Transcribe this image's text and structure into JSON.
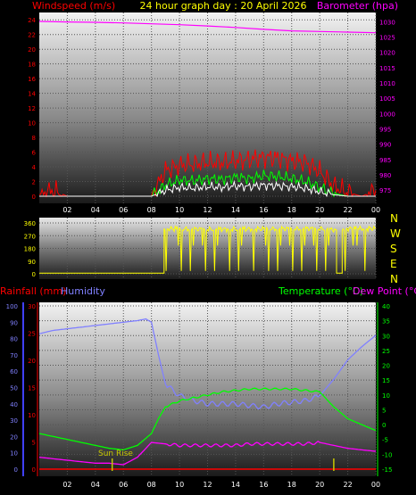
{
  "header": {
    "left_title": "Windspeed (m/s)",
    "center_title": "24 hour graph day : 20 April 2026",
    "right_title": "Barometer (hpa)"
  },
  "colors": {
    "wind_avg": "#ffffff",
    "wind_gust": "#ff0000",
    "wind_mid": "#00ff00",
    "barometer": "#ff00ff",
    "direction": "#ffff00",
    "rainfall": "#ff0000",
    "humidity": "#8080ff",
    "temperature": "#00ff00",
    "dewpoint": "#ff00ff",
    "sunrise": "#c8c800"
  },
  "chart_data": [
    {
      "type": "line",
      "name": "wind-barometer",
      "x_ticks": [
        "02",
        "04",
        "06",
        "08",
        "10",
        "12",
        "14",
        "16",
        "18",
        "20",
        "22",
        "00"
      ],
      "y_left_ticks": [
        "24",
        "22",
        "20",
        "18",
        "16",
        "14",
        "12",
        "10",
        "8",
        "6",
        "4",
        "2",
        "0"
      ],
      "y_left_range": [
        0,
        25
      ],
      "y_right_ticks": [
        "1030",
        "1025",
        "1020",
        "1015",
        "1010",
        "1005",
        "1000",
        "995",
        "990",
        "985",
        "980",
        "975"
      ],
      "y_right_range": [
        973,
        1033
      ],
      "barometer": {
        "x": [
          0,
          2,
          4,
          6,
          8,
          10,
          12,
          14,
          16,
          18,
          20,
          22,
          24
        ],
        "y": [
          1030.1,
          1029.9,
          1029.8,
          1029.6,
          1029.3,
          1029.0,
          1028.6,
          1028.1,
          1027.5,
          1027.0,
          1026.8,
          1026.6,
          1026.4
        ]
      },
      "wind_gust": {
        "x": [
          0,
          1,
          2,
          4,
          6,
          8,
          9,
          10,
          11,
          12,
          13,
          14,
          15,
          16,
          17,
          18,
          19,
          20,
          21,
          22,
          23,
          24
        ],
        "y": [
          0.2,
          0.8,
          0,
          0,
          0,
          0,
          3.5,
          4.2,
          4.4,
          4.6,
          4.6,
          4.8,
          5.0,
          5.3,
          5.2,
          4.8,
          4.6,
          3.4,
          1.4,
          0.5,
          0,
          0.8
        ]
      },
      "wind_mid": {
        "x": [
          0,
          8,
          9,
          10,
          11,
          12,
          13,
          14,
          15,
          16,
          17,
          18,
          19,
          20,
          21,
          22,
          24
        ],
        "y": [
          0,
          0,
          1.5,
          2.2,
          2.1,
          2.4,
          2.3,
          2.6,
          2.4,
          2.8,
          2.7,
          2.4,
          2.0,
          1.2,
          0.4,
          0,
          0
        ]
      },
      "wind_avg": {
        "x": [
          0,
          8,
          9,
          10,
          11,
          12,
          13,
          14,
          15,
          16,
          17,
          18,
          19,
          20,
          21,
          22,
          24
        ],
        "y": [
          0,
          0,
          0.8,
          1.2,
          1.1,
          1.3,
          1.2,
          1.4,
          1.3,
          1.5,
          1.4,
          1.3,
          1.1,
          0.6,
          0.2,
          0,
          0
        ]
      }
    },
    {
      "type": "line",
      "name": "wind-direction",
      "y_ticks": [
        "360",
        "270",
        "180",
        "90",
        "0"
      ],
      "y_range": [
        0,
        360
      ],
      "compass_labels": [
        "N",
        "W",
        "S",
        "E",
        "N"
      ],
      "direction": {
        "x": [
          0,
          8.9,
          8.9,
          12,
          16,
          20,
          21.2,
          21.2,
          21.6,
          21.6,
          24
        ],
        "y": [
          5,
          5,
          320,
          315,
          318,
          320,
          310,
          5,
          5,
          320,
          320
        ]
      }
    },
    {
      "type": "line",
      "name": "rain-humidity-temperature",
      "left_titles": [
        "Rainfall (mm)",
        "Humidity"
      ],
      "right_titles": [
        "Temperature (°C)",
        "Dew Point (°C)"
      ],
      "annotation": "Sun Rise",
      "x_ticks": [
        "02",
        "04",
        "06",
        "08",
        "10",
        "12",
        "14",
        "16",
        "18",
        "20",
        "22",
        "00"
      ],
      "humidity_ticks": [
        "100",
        "90",
        "80",
        "70",
        "60",
        "50",
        "40",
        "30",
        "20",
        "10",
        "0"
      ],
      "rain_ticks": [
        "30",
        "25",
        "20",
        "15",
        "10",
        "5",
        "0"
      ],
      "temp_ticks": [
        "40",
        "35",
        "30",
        "25",
        "20",
        "15",
        "10",
        "5",
        "0",
        "-5",
        "-10",
        "-15"
      ],
      "humidity_range": [
        0,
        100
      ],
      "temp_range": [
        -15,
        40
      ],
      "humidity": {
        "x": [
          0,
          1,
          2,
          3,
          4,
          5,
          6,
          7,
          7.6,
          8,
          8.5,
          9,
          10,
          11,
          12,
          13,
          14,
          15,
          16,
          17,
          18,
          19,
          20,
          21,
          22,
          23,
          24
        ],
        "y": [
          83,
          85,
          86,
          87,
          88,
          89,
          90,
          91,
          92,
          90,
          70,
          52,
          45,
          42,
          40,
          40,
          40,
          39,
          38,
          40,
          41,
          42,
          45,
          55,
          67,
          75,
          82
        ]
      },
      "temperature": {
        "x": [
          0,
          1,
          2,
          3,
          4,
          5,
          6,
          7,
          8,
          8.5,
          9,
          10,
          11,
          12,
          13,
          14,
          15,
          16,
          17,
          18,
          19,
          20,
          21,
          22,
          23,
          24
        ],
        "y": [
          -3,
          -4,
          -5,
          -6,
          -7,
          -8,
          -8.5,
          -7,
          -3,
          2,
          6,
          8,
          9,
          10,
          11,
          11.5,
          12,
          12,
          12,
          12,
          11.5,
          11,
          6,
          2,
          0,
          -2
        ]
      },
      "dewpoint": {
        "x": [
          0,
          1,
          2,
          3,
          4,
          5,
          6,
          7,
          8,
          9,
          10,
          11,
          12,
          13,
          14,
          15,
          16,
          17,
          18,
          19,
          20,
          21,
          22,
          23,
          24
        ],
        "y": [
          -11,
          -11.5,
          -12,
          -12.5,
          -13,
          -13,
          -13.5,
          -11,
          -6,
          -6.5,
          -7,
          -7,
          -7,
          -7,
          -7,
          -6.5,
          -6.5,
          -6.5,
          -6.5,
          -6.5,
          -6,
          -7,
          -8,
          -8.5,
          -9
        ]
      },
      "rainfall": {
        "x": [
          0,
          24
        ],
        "y": [
          0,
          0
        ]
      },
      "sunrise_hour": 5.2,
      "sunset_hour": 21
    }
  ]
}
